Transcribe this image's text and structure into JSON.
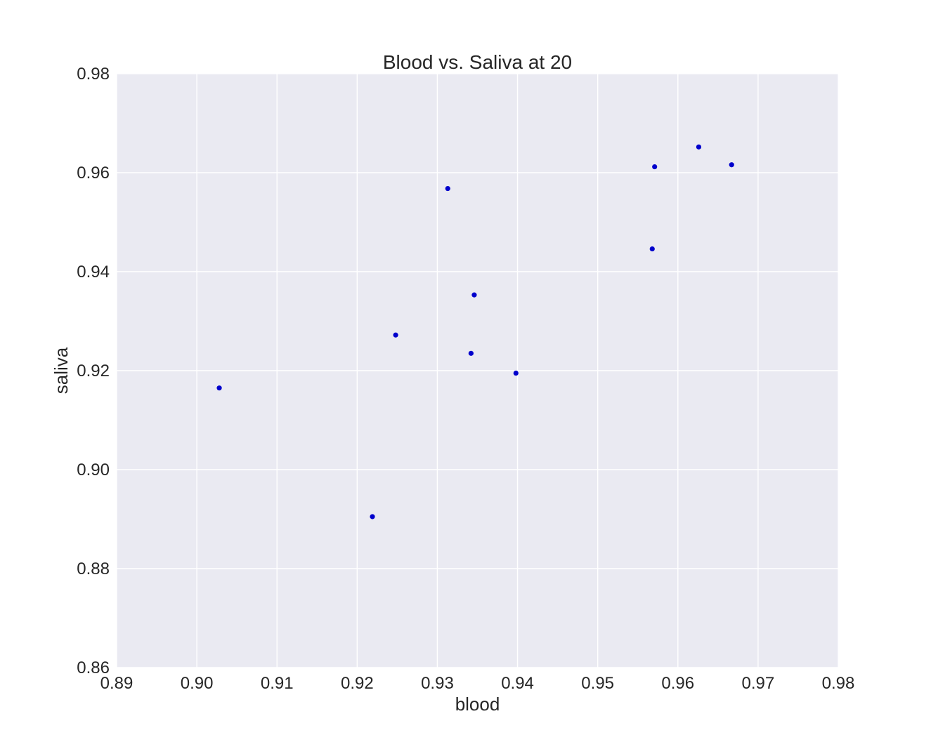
{
  "chart_data": {
    "type": "scatter",
    "title": "Blood vs. Saliva at 20",
    "xlabel": "blood",
    "ylabel": "saliva",
    "xlim": [
      0.89,
      0.98
    ],
    "ylim": [
      0.86,
      0.98
    ],
    "xticks": [
      "0.89",
      "0.90",
      "0.91",
      "0.92",
      "0.93",
      "0.94",
      "0.95",
      "0.96",
      "0.97",
      "0.98"
    ],
    "yticks": [
      "0.86",
      "0.88",
      "0.90",
      "0.92",
      "0.94",
      "0.96",
      "0.98"
    ],
    "grid": true,
    "marker_color": "#0000CC",
    "background_color": "#EAEAF2",
    "points": [
      {
        "x": 0.9028,
        "y": 0.9165
      },
      {
        "x": 0.9219,
        "y": 0.8905
      },
      {
        "x": 0.9248,
        "y": 0.9272
      },
      {
        "x": 0.9313,
        "y": 0.9568
      },
      {
        "x": 0.9342,
        "y": 0.9235
      },
      {
        "x": 0.9346,
        "y": 0.9353
      },
      {
        "x": 0.9398,
        "y": 0.9195
      },
      {
        "x": 0.9568,
        "y": 0.9446
      },
      {
        "x": 0.9571,
        "y": 0.9612
      },
      {
        "x": 0.9626,
        "y": 0.9652
      },
      {
        "x": 0.9667,
        "y": 0.9616
      }
    ]
  }
}
